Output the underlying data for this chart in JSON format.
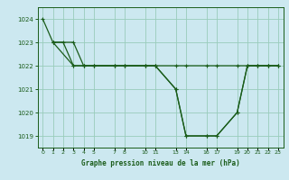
{
  "background_color": "#cce8f0",
  "grid_color": "#99ccbb",
  "line_color": "#1a5c1a",
  "title": "Graphe pression niveau de la mer (hPa)",
  "ylim": [
    1018.5,
    1024.5
  ],
  "xlim": [
    -0.5,
    23.5
  ],
  "yticks": [
    1019,
    1020,
    1021,
    1022,
    1023,
    1024
  ],
  "xtick_positions": [
    0,
    1,
    2,
    3,
    4,
    5,
    7,
    8,
    10,
    11,
    13,
    14,
    16,
    17,
    19,
    20,
    21,
    22,
    23
  ],
  "xtick_labels": [
    "0",
    "1",
    "2",
    "3",
    "4",
    "5",
    "7",
    "8",
    "10",
    "11",
    "13",
    "14",
    "16",
    "17",
    "19",
    "20",
    "21",
    "22",
    "23"
  ],
  "series1_x": [
    0,
    1,
    2,
    3,
    4,
    5,
    7,
    8,
    10,
    11,
    13,
    14,
    16,
    17,
    19,
    20,
    21,
    22,
    23
  ],
  "series1_y": [
    1024,
    1023,
    1023,
    1022,
    1022,
    1022,
    1022,
    1022,
    1022,
    1022,
    1021,
    1019,
    1019,
    1019,
    1020,
    1022,
    1022,
    1022,
    1022
  ],
  "series2_x": [
    1,
    3,
    4,
    5,
    7,
    8,
    10,
    11,
    13,
    14,
    16,
    17,
    19,
    20,
    21,
    22,
    23
  ],
  "series2_y": [
    1023,
    1023,
    1022,
    1022,
    1022,
    1022,
    1022,
    1022,
    1021,
    1019,
    1019,
    1019,
    1020,
    1022,
    1022,
    1022,
    1022
  ],
  "series3_x": [
    1,
    3,
    4,
    5,
    7,
    8,
    10,
    11,
    13,
    14,
    16,
    17,
    19,
    20,
    21,
    22,
    23
  ],
  "series3_y": [
    1023,
    1022,
    1022,
    1022,
    1022,
    1022,
    1022,
    1022,
    1022,
    1022,
    1022,
    1022,
    1022,
    1022,
    1022,
    1022,
    1022
  ],
  "figsize": [
    3.2,
    2.0
  ],
  "dpi": 100
}
